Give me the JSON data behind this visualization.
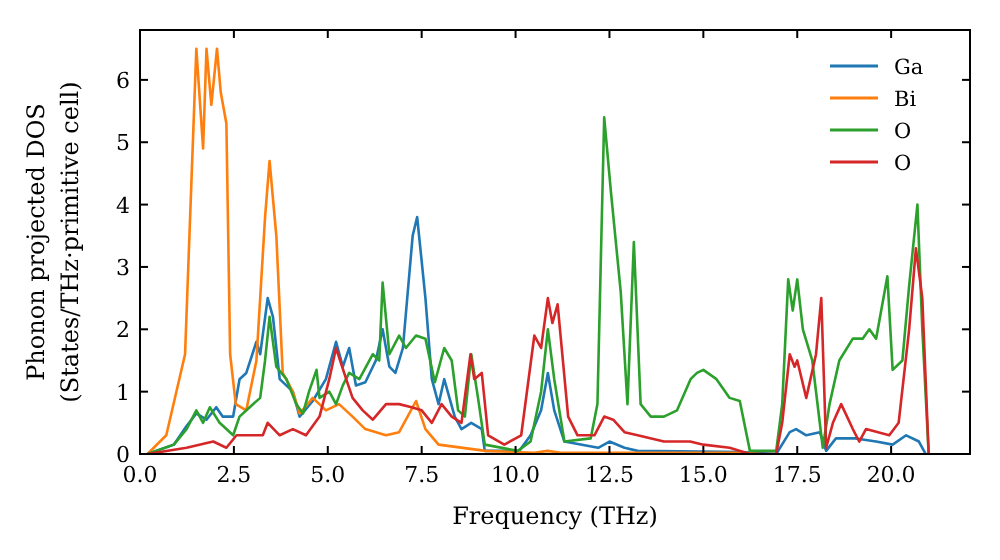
{
  "chart_data": {
    "type": "line",
    "xlabel": "Frequency (THz)",
    "ylabel": "Phonon projected DOS\n(States/THz·primitive cell)",
    "xlim": [
      0,
      22.1
    ],
    "ylim": [
      0,
      6.8
    ],
    "xticks": [
      {
        "value": 0,
        "label": "0.0"
      },
      {
        "value": 2.5,
        "label": "2.5"
      },
      {
        "value": 5,
        "label": "5.0"
      },
      {
        "value": 7.5,
        "label": "7.5"
      },
      {
        "value": 10,
        "label": "10.0"
      },
      {
        "value": 12.5,
        "label": "12.5"
      },
      {
        "value": 15,
        "label": "15.0"
      },
      {
        "value": 17.5,
        "label": "17.5"
      },
      {
        "value": 20,
        "label": "20.0"
      }
    ],
    "yticks": [
      0,
      1,
      2,
      3,
      4,
      5,
      6
    ],
    "legend": "top right",
    "grid": false,
    "marker": "none",
    "line_style": "solid",
    "series": [
      {
        "name": "Ga",
        "color": "#1f77b4",
        "x": [
          0.2,
          0.9,
          1.24,
          1.5,
          1.77,
          2.03,
          2.2,
          2.48,
          2.65,
          2.83,
          3.1,
          3.2,
          3.4,
          3.54,
          3.72,
          4.07,
          4.25,
          4.6,
          4.95,
          5.22,
          5.4,
          5.57,
          5.75,
          6.0,
          6.28,
          6.46,
          6.64,
          6.8,
          7.0,
          7.26,
          7.38,
          7.6,
          7.77,
          7.95,
          8.1,
          8.38,
          8.56,
          8.82,
          9.1,
          9.18,
          10.1,
          10.4,
          10.68,
          10.86,
          11.03,
          11.3,
          12.2,
          12.5,
          12.9,
          13.25,
          16.0,
          16.94,
          17.3,
          17.47,
          17.74,
          18.1,
          18.27,
          18.53,
          19.06,
          19.6,
          20.04,
          20.4,
          20.74,
          20.92
        ],
        "values": [
          0,
          0.15,
          0.45,
          0.65,
          0.55,
          0.75,
          0.6,
          0.6,
          1.2,
          1.3,
          1.8,
          1.6,
          2.5,
          2.2,
          1.2,
          1.0,
          0.6,
          0.85,
          1.2,
          1.8,
          1.4,
          1.7,
          1.1,
          1.15,
          1.5,
          2.0,
          1.4,
          1.3,
          1.7,
          3.5,
          3.8,
          2.5,
          1.2,
          0.8,
          1.2,
          0.6,
          0.4,
          0.5,
          0.4,
          0.05,
          0.05,
          0.3,
          0.7,
          1.3,
          0.7,
          0.2,
          0.1,
          0.2,
          0.1,
          0.05,
          0.03,
          0,
          0.35,
          0.4,
          0.3,
          0.35,
          0.05,
          0.25,
          0.25,
          0.2,
          0.15,
          0.3,
          0.2,
          0
        ]
      },
      {
        "name": "Bi",
        "color": "#ff7f0e",
        "x": [
          0.2,
          0.7,
          1.2,
          1.5,
          1.68,
          1.77,
          1.9,
          2.05,
          2.15,
          2.3,
          2.4,
          2.55,
          2.83,
          3.1,
          3.33,
          3.45,
          3.63,
          3.8,
          4.07,
          4.25,
          4.6,
          4.95,
          5.3,
          5.66,
          6.0,
          6.55,
          6.9,
          7.35,
          7.6,
          7.95,
          9.2,
          10.5,
          10.85,
          11.2,
          16.0,
          16.5
        ],
        "values": [
          0,
          0.3,
          1.6,
          6.5,
          4.9,
          6.5,
          5.6,
          6.5,
          5.8,
          5.3,
          1.6,
          0.8,
          0.7,
          1.5,
          3.8,
          4.7,
          3.5,
          1.3,
          1.0,
          0.65,
          0.9,
          0.7,
          0.8,
          0.6,
          0.4,
          0.3,
          0.35,
          0.85,
          0.4,
          0.15,
          0.05,
          0.02,
          0.05,
          0.02,
          0.02,
          0
        ]
      },
      {
        "name": "O",
        "color": "#2ca02c",
        "x": [
          0.2,
          0.9,
          1.24,
          1.5,
          1.68,
          1.86,
          2.12,
          2.48,
          2.65,
          2.92,
          3.2,
          3.33,
          3.45,
          3.63,
          3.9,
          4.16,
          4.34,
          4.5,
          4.7,
          4.78,
          5.04,
          5.22,
          5.4,
          5.57,
          5.84,
          6.2,
          6.37,
          6.46,
          6.64,
          6.9,
          7.08,
          7.35,
          7.6,
          7.85,
          8.1,
          8.3,
          8.47,
          8.65,
          8.82,
          9.0,
          9.18,
          10.06,
          10.4,
          10.68,
          10.86,
          11.03,
          11.3,
          12.0,
          12.18,
          12.36,
          12.54,
          12.8,
          12.98,
          13.15,
          13.33,
          13.6,
          13.95,
          14.3,
          14.66,
          14.83,
          15.0,
          15.35,
          15.7,
          15.97,
          16.24,
          16.94,
          17.1,
          17.26,
          17.38,
          17.5,
          17.65,
          17.9,
          18.18,
          18.36,
          18.62,
          18.98,
          19.24,
          19.42,
          19.6,
          19.9,
          20.04,
          20.3,
          20.48,
          20.7,
          20.83,
          21.0
        ],
        "values": [
          0,
          0.15,
          0.4,
          0.7,
          0.5,
          0.75,
          0.5,
          0.3,
          0.6,
          0.75,
          0.9,
          1.5,
          2.2,
          1.4,
          1.2,
          0.8,
          0.65,
          1.0,
          1.35,
          0.9,
          1.0,
          0.8,
          1.1,
          1.3,
          1.2,
          1.6,
          1.5,
          2.75,
          1.6,
          1.9,
          1.7,
          1.9,
          1.85,
          1.15,
          1.7,
          1.5,
          0.7,
          0.6,
          1.6,
          0.9,
          0.15,
          0.05,
          0.2,
          1.0,
          2.0,
          1.2,
          0.2,
          0.25,
          0.8,
          5.4,
          4.2,
          2.6,
          0.8,
          3.4,
          0.8,
          0.6,
          0.6,
          0.7,
          1.2,
          1.3,
          1.35,
          1.2,
          0.9,
          0.85,
          0.05,
          0.05,
          0.8,
          2.8,
          2.3,
          2.8,
          2.0,
          1.5,
          0.1,
          0.8,
          1.5,
          1.85,
          1.85,
          2.0,
          1.85,
          2.85,
          1.35,
          1.5,
          2.7,
          4.0,
          2.0,
          0
        ]
      },
      {
        "name": "O",
        "color": "#d62728",
        "x": [
          0.2,
          1.24,
          1.95,
          2.3,
          2.57,
          3.0,
          3.27,
          3.4,
          3.72,
          4.07,
          4.42,
          4.78,
          5.04,
          5.22,
          5.49,
          5.66,
          5.93,
          6.2,
          6.55,
          6.9,
          7.23,
          7.5,
          7.77,
          8.03,
          8.3,
          8.56,
          8.8,
          8.9,
          9.1,
          9.27,
          9.7,
          10.15,
          10.5,
          10.68,
          10.86,
          10.98,
          11.12,
          11.4,
          11.65,
          12.1,
          12.36,
          12.6,
          12.9,
          13.25,
          13.95,
          14.65,
          15.0,
          15.7,
          16.24,
          16.94,
          17.1,
          17.3,
          17.43,
          17.5,
          17.74,
          18.0,
          18.14,
          18.27,
          18.45,
          18.67,
          18.98,
          19.15,
          19.33,
          19.95,
          20.2,
          20.48,
          20.66,
          20.83,
          21.0
        ],
        "values": [
          0,
          0.1,
          0.2,
          0.1,
          0.3,
          0.3,
          0.3,
          0.5,
          0.3,
          0.4,
          0.3,
          0.6,
          1.2,
          1.7,
          1.2,
          0.9,
          0.7,
          0.55,
          0.8,
          0.8,
          0.75,
          0.7,
          0.5,
          0.8,
          0.6,
          0.5,
          1.6,
          1.2,
          1.3,
          0.3,
          0.15,
          0.3,
          1.9,
          1.7,
          2.5,
          2.1,
          2.4,
          0.6,
          0.3,
          0.3,
          0.6,
          0.55,
          0.35,
          0.3,
          0.2,
          0.2,
          0.15,
          0.1,
          0,
          0,
          0.5,
          1.6,
          1.4,
          1.5,
          0.9,
          1.6,
          2.5,
          0.1,
          0.5,
          0.8,
          0.4,
          0.2,
          0.4,
          0.3,
          0.5,
          2.0,
          3.3,
          2.5,
          0
        ]
      }
    ]
  }
}
